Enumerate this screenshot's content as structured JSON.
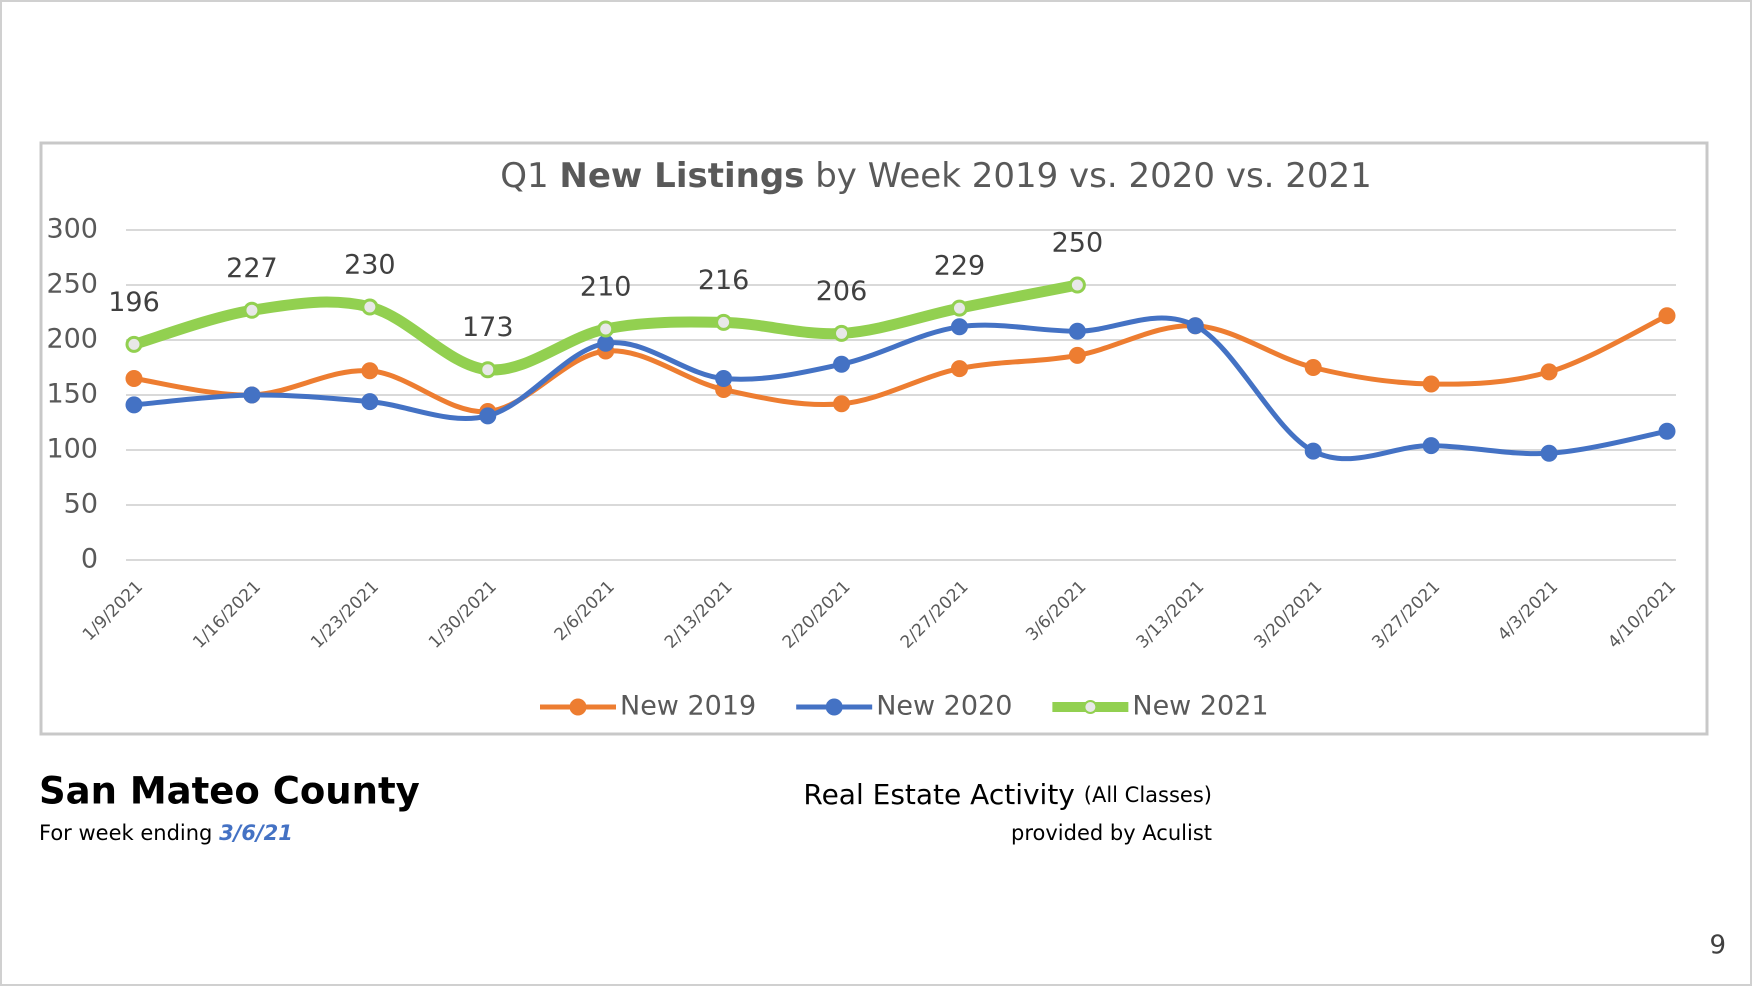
{
  "chart_data": {
    "type": "line",
    "title_parts": [
      "Q1 ",
      "New Listings",
      " by Week 2019 vs. 2020 vs. 2021"
    ],
    "categories": [
      "1/9/2021",
      "1/16/2021",
      "1/23/2021",
      "1/30/2021",
      "2/6/2021",
      "2/13/2021",
      "2/20/2021",
      "2/27/2021",
      "3/6/2021",
      "3/13/2021",
      "3/20/2021",
      "3/27/2021",
      "4/3/2021",
      "4/10/2021"
    ],
    "series": [
      {
        "name": "New 2019",
        "color": "#ed7d31",
        "values": [
          165,
          150,
          172,
          135,
          190,
          155,
          142,
          174,
          186,
          213,
          175,
          160,
          171,
          222
        ]
      },
      {
        "name": "New 2020",
        "color": "#4472c4",
        "values": [
          141,
          150,
          144,
          131,
          197,
          165,
          178,
          212,
          208,
          213,
          99,
          104,
          97,
          117
        ]
      },
      {
        "name": "New 2021",
        "color": "#92d050",
        "values": [
          196,
          227,
          230,
          173,
          210,
          216,
          206,
          229,
          250,
          null,
          null,
          null,
          null,
          null
        ],
        "data_labels": true
      }
    ],
    "ylim": [
      0,
      300
    ],
    "yticks": [
      0,
      50,
      100,
      150,
      200,
      250,
      300
    ],
    "grid": true,
    "legend": "bottom",
    "smooth": true
  },
  "footer": {
    "region": "San Mateo County",
    "week_prefix": "For week ending",
    "week_date": "3/6/21",
    "report": "Real Estate Activity",
    "report_note": "(All Classes)",
    "provider": "provided by Aculist"
  },
  "page_number": 9
}
